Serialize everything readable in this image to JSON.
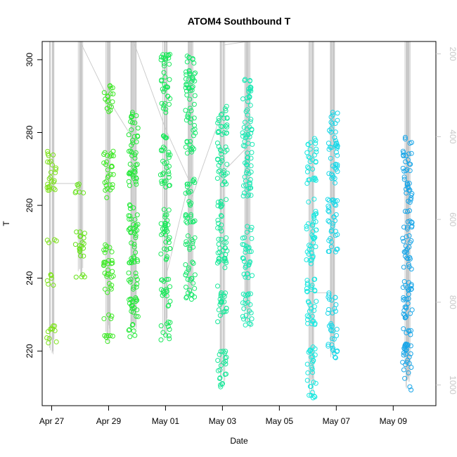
{
  "chart_data": {
    "type": "scatter",
    "title": "ATOM4 Southbound T",
    "xlabel": "Date",
    "ylabel": "T",
    "x_unit": "days",
    "xlim": [
      "2015-04-26T16:00",
      "2015-05-10T12:00"
    ],
    "ylim": [
      205,
      305
    ],
    "x_ticks": [
      {
        "label": "Apr 27",
        "date": "2015-04-27"
      },
      {
        "label": "Apr 29",
        "date": "2015-04-29"
      },
      {
        "label": "May 01",
        "date": "2015-05-01"
      },
      {
        "label": "May 03",
        "date": "2015-05-03"
      },
      {
        "label": "May 05",
        "date": "2015-05-05"
      },
      {
        "label": "May 07",
        "date": "2015-05-07"
      },
      {
        "label": "May 09",
        "date": "2015-05-09"
      }
    ],
    "y_ticks": [
      220,
      240,
      260,
      280,
      300
    ],
    "secondary_axis": {
      "side": "right",
      "lim": [
        1050,
        170
      ],
      "ticks": [
        200,
        400,
        600,
        800,
        1000
      ],
      "color": "#c8c8c8"
    },
    "grid": false,
    "legend": "none",
    "marker": "open circle",
    "line_color": "#c8c8c8",
    "color_scale": "green to cyan to blue by time",
    "series": [
      {
        "time": "2015-04-27T00:00",
        "color": "#7ce21a",
        "y_min": 218,
        "y_max": 276,
        "bands": [
          [
            222,
            227
          ],
          [
            238,
            241
          ],
          [
            249,
            251
          ],
          [
            264,
            276
          ]
        ]
      },
      {
        "time": "2015-04-28T00:00",
        "color": "#66e21a",
        "y_min": 240,
        "y_max": 266,
        "bands": [
          [
            240,
            241
          ],
          [
            245,
            253
          ],
          [
            263,
            266
          ]
        ]
      },
      {
        "time": "2015-04-29T00:00",
        "color": "#3ee826",
        "y_min": 222,
        "y_max": 293,
        "bands": [
          [
            222,
            225
          ],
          [
            228,
            230
          ],
          [
            236,
            250
          ],
          [
            262,
            275
          ],
          [
            285,
            293
          ]
        ]
      },
      {
        "time": "2015-04-29T21:00",
        "color": "#26e83a",
        "y_min": 223,
        "y_max": 290,
        "bands": [
          [
            223,
            235
          ],
          [
            237,
            242
          ],
          [
            244,
            262
          ],
          [
            265,
            286
          ]
        ]
      },
      {
        "time": "2015-05-01T00:00",
        "color": "#1ae85a",
        "y_min": 223,
        "y_max": 302,
        "bands": [
          [
            223,
            228
          ],
          [
            232,
            240
          ],
          [
            245,
            260
          ],
          [
            265,
            280
          ],
          [
            285,
            302
          ]
        ]
      },
      {
        "time": "2015-05-01T21:00",
        "color": "#1ae86e",
        "y_min": 234,
        "y_max": 301,
        "bands": [
          [
            234,
            245
          ],
          [
            247,
            252
          ],
          [
            255,
            268
          ],
          [
            272,
            301
          ]
        ]
      },
      {
        "time": "2015-05-03T00:00",
        "color": "#1ae89a",
        "y_min": 210,
        "y_max": 288,
        "bands": [
          [
            210,
            220
          ],
          [
            228,
            238
          ],
          [
            242,
            262
          ],
          [
            265,
            288
          ]
        ]
      },
      {
        "time": "2015-05-03T21:00",
        "color": "#1ae8b4",
        "y_min": 226,
        "y_max": 295,
        "bands": [
          [
            226,
            236
          ],
          [
            240,
            255
          ],
          [
            262,
            295
          ]
        ]
      },
      {
        "time": "2015-05-06T03:00",
        "color": "#1ae8e0",
        "y_min": 207,
        "y_max": 279,
        "bands": [
          [
            207,
            212
          ],
          [
            214,
            222
          ],
          [
            226,
            240
          ],
          [
            244,
            262
          ],
          [
            266,
            279
          ]
        ]
      },
      {
        "time": "2015-05-06T21:00",
        "color": "#1ad8e8",
        "y_min": 218,
        "y_max": 286,
        "bands": [
          [
            218,
            228
          ],
          [
            230,
            236
          ],
          [
            246,
            262
          ],
          [
            266,
            286
          ]
        ]
      },
      {
        "time": "2015-05-09T12:00",
        "color": "#1aa6e8",
        "y_min": 209,
        "y_max": 279,
        "bands": [
          [
            209,
            222
          ],
          [
            224,
            240
          ],
          [
            242,
            256
          ],
          [
            258,
            275
          ],
          [
            277,
            279
          ]
        ]
      }
    ],
    "connector_lines": [
      {
        "from": [
          "2015-04-27T00:00",
          266
        ],
        "to": [
          "2015-04-28T00:00",
          266
        ]
      },
      {
        "from": [
          "2015-04-28T00:00",
          305
        ],
        "to": [
          "2015-04-29T00:00",
          289
        ]
      },
      {
        "from": [
          "2015-04-29T00:00",
          289
        ],
        "to": [
          "2015-04-29T21:00",
          278
        ]
      },
      {
        "from": [
          "2015-04-29T21:00",
          305
        ],
        "to": [
          "2015-05-01T00:00",
          281
        ]
      },
      {
        "from": [
          "2015-05-01T00:00",
          281
        ],
        "to": [
          "2015-05-01T21:00",
          266
        ]
      },
      {
        "from": [
          "2015-05-01T00:00",
          240
        ],
        "to": [
          "2015-05-01T21:00",
          268
        ]
      },
      {
        "from": [
          "2015-05-01T21:00",
          261
        ],
        "to": [
          "2015-05-03T00:00",
          286
        ]
      },
      {
        "from": [
          "2015-05-03T00:00",
          304
        ],
        "to": [
          "2015-05-03T21:00",
          305
        ]
      },
      {
        "from": [
          "2015-05-03T00:00",
          269
        ],
        "to": [
          "2015-05-03T21:00",
          276
        ]
      },
      {
        "from": [
          "2015-05-06T03:00",
          236
        ],
        "to": [
          "2015-05-06T21:00",
          236
        ]
      }
    ]
  }
}
